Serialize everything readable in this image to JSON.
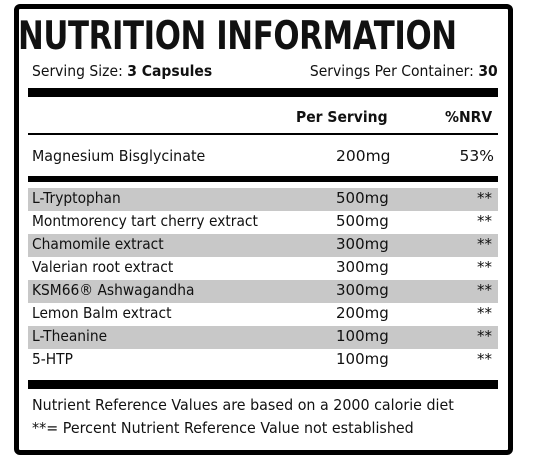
{
  "title": "NUTRITION INFORMATION",
  "serving": {
    "label": "Serving Size:",
    "value": "3 Capsules"
  },
  "per_container": {
    "label": "Servings Per Container:",
    "value": "30"
  },
  "columns": {
    "per_serving": "Per Serving",
    "nrv": "%NRV"
  },
  "highlight": {
    "name": "Magnesium Bisglycinate",
    "amount": "200mg",
    "nrv": "53%"
  },
  "ingredients": [
    {
      "name": "L-Tryptophan",
      "amount": "500mg",
      "nrv": "**"
    },
    {
      "name": "Montmorency tart cherry extract",
      "amount": "500mg",
      "nrv": "**"
    },
    {
      "name": "Chamomile extract",
      "amount": "300mg",
      "nrv": "**"
    },
    {
      "name": "Valerian root extract",
      "amount": "300mg",
      "nrv": "**"
    },
    {
      "name": "KSM66® Ashwagandha",
      "amount": "300mg",
      "nrv": "**"
    },
    {
      "name": "Lemon Balm extract",
      "amount": "200mg",
      "nrv": "**"
    },
    {
      "name": "L-Theanine",
      "amount": "100mg",
      "nrv": "**"
    },
    {
      "name": "5-HTP",
      "amount": "100mg",
      "nrv": "**"
    }
  ],
  "footnotes": [
    "Nutrient Reference Values are based on a 2000 calorie diet",
    "**= Percent Nutrient Reference Value not established"
  ]
}
